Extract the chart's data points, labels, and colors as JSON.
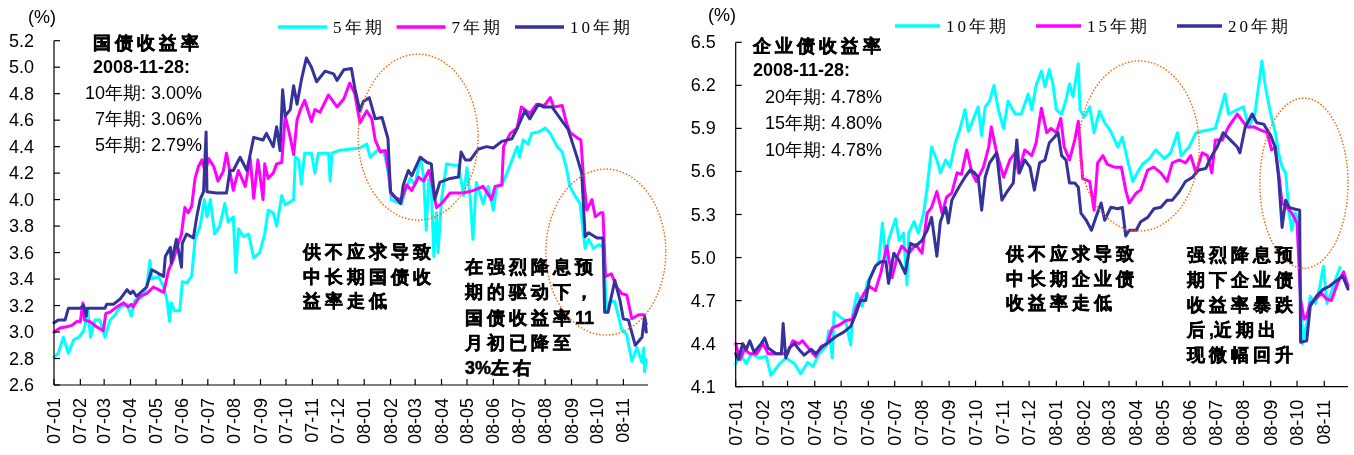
{
  "chart_data": [
    {
      "type": "line",
      "ylabel": "(%)",
      "legend": "top",
      "xlim": [
        "2007-01-01",
        "2008-11-30"
      ],
      "xticks": [
        {
          "value": "2007-01-01",
          "label": "07-01"
        },
        {
          "value": "2007-02-01",
          "label": "07-02"
        },
        {
          "value": "2007-03-01",
          "label": "07-03"
        },
        {
          "value": "2007-04-01",
          "label": "07-04"
        },
        {
          "value": "2007-05-01",
          "label": "07-05"
        },
        {
          "value": "2007-06-01",
          "label": "07-06"
        },
        {
          "value": "2007-07-01",
          "label": "07-07"
        },
        {
          "value": "2007-08-01",
          "label": "07-08"
        },
        {
          "value": "2007-09-01",
          "label": "07-09"
        },
        {
          "value": "2007-10-01",
          "label": "07-10"
        },
        {
          "value": "2007-11-01",
          "label": "07-11"
        },
        {
          "value": "2007-12-01",
          "label": "07-12"
        },
        {
          "value": "2008-01-01",
          "label": "08-01"
        },
        {
          "value": "2008-02-01",
          "label": "08-02"
        },
        {
          "value": "2008-03-01",
          "label": "08-03"
        },
        {
          "value": "2008-04-01",
          "label": "08-04"
        },
        {
          "value": "2008-05-01",
          "label": "08-05"
        },
        {
          "value": "2008-06-01",
          "label": "08-06"
        },
        {
          "value": "2008-07-01",
          "label": "08-07"
        },
        {
          "value": "2008-08-01",
          "label": "08-08"
        },
        {
          "value": "2008-09-01",
          "label": "08-09"
        },
        {
          "value": "2008-10-01",
          "label": "08-10"
        },
        {
          "value": "2008-11-01",
          "label": "08-11"
        }
      ],
      "ylim": [
        2.6,
        5.2
      ],
      "yticks": [
        2.6,
        2.8,
        {
          "value": 3,
          "label": "3.0"
        },
        3.2,
        3.4,
        3.6,
        3.8,
        {
          "value": 4,
          "label": "4.0"
        },
        4.2,
        4.4,
        4.6,
        4.8,
        {
          "value": 5,
          "label": "5.0"
        },
        5.2
      ],
      "annotations": [
        "国债收益率",
        "2008-11-28:",
        "10年期: 3.00%",
        "7年期: 3.06%",
        "5年期: 2.79%",
        "供不应求导致中长期国债收益率走低",
        "在强烈降息预期的驱动下，国债收益率11月初已降至3%左右"
      ],
      "series": [
        {
          "name": "5年期",
          "color": "#00FFFF",
          "x": [
            "2007-01-01",
            "2007-01-06",
            "2007-01-12",
            "2007-01-18",
            "2007-01-24",
            "2007-01-30",
            "2007-02-05",
            "2007-02-10",
            "2007-02-13",
            "2007-02-18",
            "2007-02-24",
            "2007-03-02",
            "2007-03-08",
            "2007-03-14",
            "2007-03-20",
            "2007-03-28",
            "2007-04-02",
            "2007-04-06",
            "2007-04-14",
            "2007-04-20",
            "2007-04-24",
            "2007-04-26",
            "2007-05-04",
            "2007-05-10",
            "2007-05-14",
            "2007-05-17",
            "2007-05-19",
            "2007-05-23",
            "2007-05-29",
            "2007-06-01",
            "2007-06-06",
            "2007-06-12",
            "2007-06-16",
            "2007-06-22",
            "2007-06-27",
            "2007-06-30",
            "2007-07-04",
            "2007-07-09",
            "2007-07-15",
            "2007-07-21",
            "2007-07-25",
            "2007-07-31",
            "2007-08-03",
            "2007-08-06",
            "2007-08-12",
            "2007-08-18",
            "2007-08-24",
            "2007-08-31",
            "2007-09-06",
            "2007-09-10",
            "2007-09-16",
            "2007-09-20",
            "2007-09-26",
            "2007-09-30",
            "2007-10-10",
            "2007-10-12",
            "2007-10-16",
            "2007-10-19",
            "2007-10-23",
            "2007-10-31",
            "2007-11-04",
            "2007-11-08",
            "2007-11-20",
            "2007-11-22",
            "2007-11-24",
            "2007-12-02",
            "2007-12-27",
            "2008-01-04",
            "2008-01-08",
            "2008-01-16",
            "2008-01-24",
            "2008-01-29",
            "2008-02-02",
            "2008-02-08",
            "2008-02-14",
            "2008-02-18",
            "2008-02-24",
            "2008-03-01",
            "2008-03-07",
            "2008-03-11",
            "2008-03-14",
            "2008-03-17",
            "2008-03-20",
            "2008-03-23",
            "2008-03-26",
            "2008-03-28",
            "2008-04-01",
            "2008-04-07",
            "2008-04-15",
            "2008-04-21",
            "2008-04-27",
            "2008-05-01",
            "2008-05-05",
            "2008-05-08",
            "2008-05-12",
            "2008-05-20",
            "2008-05-26",
            "2008-06-01",
            "2008-06-05",
            "2008-06-11",
            "2008-06-17",
            "2008-06-23",
            "2008-06-29",
            "2008-07-02",
            "2008-07-06",
            "2008-07-12",
            "2008-07-16",
            "2008-07-24",
            "2008-08-01",
            "2008-08-07",
            "2008-08-15",
            "2008-08-21",
            "2008-08-26",
            "2008-08-30",
            "2008-09-05",
            "2008-09-11",
            "2008-09-17",
            "2008-09-21",
            "2008-09-27",
            "2008-10-03",
            "2008-10-09",
            "2008-10-12",
            "2008-10-16",
            "2008-10-22",
            "2008-10-30",
            "2008-11-05",
            "2008-11-11",
            "2008-11-17",
            "2008-11-23",
            "2008-11-25",
            "2008-11-26",
            "2008-11-28"
          ],
          "values": [
            2.81,
            2.84,
            2.96,
            2.84,
            2.94,
            2.96,
            3.01,
            3.16,
            2.96,
            3.09,
            3.09,
            2.96,
            3.09,
            3.13,
            3.19,
            3.21,
            3.12,
            3.24,
            3.26,
            3.34,
            3.54,
            3.4,
            3.42,
            3.34,
            3.24,
            3.08,
            3.22,
            3.16,
            3.16,
            3.38,
            3.37,
            3.42,
            3.7,
            3.8,
            4.0,
            3.87,
            4.0,
            3.74,
            3.8,
            3.97,
            3.83,
            3.87,
            3.45,
            3.78,
            3.72,
            3.74,
            3.56,
            3.6,
            3.74,
            3.92,
            3.9,
            3.8,
            4.03,
            3.96,
            4.0,
            4.32,
            4.3,
            4.12,
            4.35,
            4.35,
            4.2,
            4.35,
            4.35,
            4.14,
            4.35,
            4.37,
            4.39,
            4.42,
            4.32,
            4.37,
            4.37,
            4.22,
            4.0,
            3.98,
            3.97,
            4.06,
            4.16,
            4.11,
            4.32,
            4.17,
            3.77,
            4.15,
            4.1,
            3.57,
            3.9,
            3.6,
            4.0,
            4.27,
            4.26,
            4.26,
            4.03,
            4.24,
            4.0,
            3.7,
            4.13,
            3.97,
            4.1,
            3.92,
            4.1,
            4.11,
            4.2,
            4.3,
            4.4,
            4.32,
            4.45,
            4.42,
            4.5,
            4.51,
            4.54,
            4.5,
            4.4,
            4.36,
            4.24,
            4.1,
            4.03,
            3.97,
            3.63,
            3.7,
            3.63,
            3.66,
            3.64,
            3.15,
            3.23,
            3.23,
            3.02,
            2.98,
            2.78,
            2.88,
            2.77,
            2.88,
            2.7,
            2.79
          ]
        },
        {
          "name": "7年期",
          "color": "#FF00FF",
          "x": [
            "2007-01-01",
            "2007-01-08",
            "2007-01-16",
            "2007-01-22",
            "2007-01-28",
            "2007-02-01",
            "2007-02-04",
            "2007-02-06",
            "2007-02-12",
            "2007-02-20",
            "2007-02-28",
            "2007-03-03",
            "2007-03-08",
            "2007-03-16",
            "2007-03-24",
            "2007-03-29",
            "2007-04-02",
            "2007-04-04",
            "2007-04-12",
            "2007-04-20",
            "2007-04-28",
            "2007-05-04",
            "2007-05-10",
            "2007-05-16",
            "2007-05-21",
            "2007-05-31",
            "2007-06-04",
            "2007-06-08",
            "2007-06-12",
            "2007-06-16",
            "2007-06-20",
            "2007-06-24",
            "2007-06-28",
            "2007-07-02",
            "2007-07-08",
            "2007-07-13",
            "2007-07-19",
            "2007-07-23",
            "2007-07-31",
            "2007-08-06",
            "2007-08-14",
            "2007-08-20",
            "2007-08-24",
            "2007-08-29",
            "2007-09-04",
            "2007-09-06",
            "2007-09-10",
            "2007-09-16",
            "2007-09-20",
            "2007-09-26",
            "2007-09-30",
            "2007-10-06",
            "2007-10-10",
            "2007-10-14",
            "2007-10-18",
            "2007-10-23",
            "2007-10-31",
            "2007-11-04",
            "2007-11-10",
            "2007-11-20",
            "2007-11-30",
            "2007-12-08",
            "2007-12-15",
            "2007-12-21",
            "2007-12-27",
            "2008-01-04",
            "2008-01-10",
            "2008-01-14",
            "2008-01-20",
            "2008-01-26",
            "2008-01-31",
            "2008-02-01",
            "2008-02-08",
            "2008-02-14",
            "2008-02-20",
            "2008-02-26",
            "2008-03-05",
            "2008-03-11",
            "2008-03-17",
            "2008-03-20",
            "2008-03-26",
            "2008-04-01",
            "2008-04-11",
            "2008-04-19",
            "2008-04-27",
            "2008-05-09",
            "2008-05-20",
            "2008-05-30",
            "2008-06-03",
            "2008-06-11",
            "2008-06-13",
            "2008-06-21",
            "2008-06-29",
            "2008-07-04",
            "2008-07-14",
            "2008-07-22",
            "2008-07-31",
            "2008-08-07",
            "2008-08-11",
            "2008-08-21",
            "2008-08-26",
            "2008-08-30",
            "2008-09-07",
            "2008-09-12",
            "2008-09-15",
            "2008-09-19",
            "2008-09-25",
            "2008-09-29",
            "2008-10-05",
            "2008-10-08",
            "2008-10-11",
            "2008-10-18",
            "2008-10-24",
            "2008-10-30",
            "2008-11-05",
            "2008-11-11",
            "2008-11-19",
            "2008-11-25",
            "2008-11-28"
          ],
          "values": [
            3.0,
            3.03,
            3.04,
            3.05,
            3.08,
            3.08,
            3.22,
            3.09,
            3.08,
            3.04,
            3.01,
            3.14,
            3.15,
            3.19,
            3.22,
            3.19,
            3.21,
            3.19,
            3.27,
            3.29,
            3.34,
            3.32,
            3.3,
            3.47,
            3.54,
            3.74,
            3.94,
            3.9,
            3.95,
            4.16,
            4.25,
            4.3,
            4.21,
            4.31,
            4.25,
            4.14,
            4.21,
            4.35,
            4.07,
            4.22,
            4.1,
            4.31,
            4.01,
            4.3,
            4.0,
            4.27,
            4.16,
            4.2,
            4.27,
            4.28,
            4.63,
            4.47,
            4.34,
            4.6,
            4.68,
            4.75,
            4.59,
            4.68,
            4.66,
            4.79,
            4.7,
            4.76,
            4.88,
            4.8,
            4.58,
            4.67,
            4.61,
            4.45,
            4.36,
            4.37,
            4.15,
            4.05,
            4.01,
            4.0,
            4.11,
            4.07,
            4.17,
            4.14,
            4.22,
            4.15,
            3.94,
            3.97,
            4.05,
            4.05,
            4.05,
            4.07,
            4.1,
            4.0,
            4.1,
            4.11,
            4.4,
            4.5,
            4.54,
            4.7,
            4.65,
            4.72,
            4.71,
            4.77,
            4.7,
            4.71,
            4.58,
            4.51,
            4.47,
            4.45,
            4.17,
            3.92,
            4.0,
            3.87,
            3.9,
            3.9,
            3.42,
            3.44,
            3.34,
            3.29,
            3.28,
            3.1,
            3.13,
            3.13,
            3.06
          ]
        },
        {
          "name": "10年期",
          "color": "#333399",
          "x": [
            "2007-01-01",
            "2007-01-06",
            "2007-01-14",
            "2007-01-18",
            "2007-02-01",
            "2007-02-05",
            "2007-02-08",
            "2007-02-09",
            "2007-03-02",
            "2007-03-04",
            "2007-03-12",
            "2007-03-20",
            "2007-03-28",
            "2007-04-01",
            "2007-04-04",
            "2007-04-08",
            "2007-04-20",
            "2007-04-26",
            "2007-05-02",
            "2007-05-10",
            "2007-05-12",
            "2007-05-18",
            "2007-05-19",
            "2007-05-25",
            "2007-05-31",
            "2007-06-01",
            "2007-06-06",
            "2007-06-14",
            "2007-06-18",
            "2007-06-22",
            "2007-06-26",
            "2007-06-29",
            "2007-06-30",
            "2007-07-11",
            "2007-07-23",
            "2007-07-27",
            "2007-07-31",
            "2007-08-08",
            "2007-08-16",
            "2007-08-24",
            "2007-09-04",
            "2007-09-08",
            "2007-09-16",
            "2007-09-20",
            "2007-09-24",
            "2007-09-27",
            "2007-09-30",
            "2007-10-06",
            "2007-10-10",
            "2007-10-14",
            "2007-10-19",
            "2007-10-25",
            "2007-10-31",
            "2007-11-06",
            "2007-11-16",
            "2007-11-26",
            "2007-11-30",
            "2007-12-08",
            "2007-12-17",
            "2007-12-21",
            "2007-12-27",
            "2007-12-31",
            "2008-01-07",
            "2008-01-14",
            "2008-01-22",
            "2008-01-29",
            "2008-02-01",
            "2008-02-06",
            "2008-02-13",
            "2008-02-16",
            "2008-02-22",
            "2008-02-26",
            "2008-03-07",
            "2008-03-15",
            "2008-03-20",
            "2008-03-24",
            "2008-03-30",
            "2008-04-11",
            "2008-04-21",
            "2008-04-24",
            "2008-04-29",
            "2008-05-05",
            "2008-05-14",
            "2008-05-24",
            "2008-06-01",
            "2008-06-11",
            "2008-06-23",
            "2008-06-30",
            "2008-07-08",
            "2008-07-14",
            "2008-07-24",
            "2008-07-30",
            "2008-08-09",
            "2008-08-19",
            "2008-08-28",
            "2008-09-07",
            "2008-09-13",
            "2008-09-17",
            "2008-09-21",
            "2008-10-01",
            "2008-10-08",
            "2008-10-10",
            "2008-10-14",
            "2008-10-22",
            "2008-10-28",
            "2008-11-01",
            "2008-11-07",
            "2008-11-15",
            "2008-11-23",
            "2008-11-26",
            "2008-11-28"
          ],
          "values": [
            3.07,
            3.09,
            3.09,
            3.18,
            3.18,
            3.2,
            3.12,
            3.18,
            3.18,
            3.21,
            3.21,
            3.25,
            3.32,
            3.29,
            3.31,
            3.27,
            3.34,
            3.47,
            3.45,
            3.42,
            3.57,
            3.64,
            3.52,
            3.7,
            3.49,
            3.67,
            3.74,
            3.71,
            3.87,
            4.0,
            4.06,
            4.51,
            4.06,
            4.05,
            4.05,
            4.22,
            4.22,
            4.32,
            4.22,
            4.47,
            4.45,
            4.5,
            4.4,
            4.55,
            4.37,
            4.83,
            4.63,
            4.68,
            4.86,
            4.72,
            4.9,
            5.07,
            5.0,
            4.89,
            4.97,
            4.95,
            4.9,
            4.98,
            4.99,
            4.84,
            4.67,
            4.74,
            4.77,
            4.61,
            4.62,
            4.46,
            4.06,
            4.02,
            3.97,
            4.11,
            4.22,
            4.18,
            4.32,
            4.28,
            4.27,
            4.0,
            4.13,
            4.16,
            4.17,
            4.36,
            4.3,
            4.3,
            4.38,
            4.4,
            4.39,
            4.44,
            4.46,
            4.55,
            4.67,
            4.61,
            4.72,
            4.7,
            4.7,
            4.61,
            4.53,
            4.33,
            4.2,
            3.72,
            3.75,
            3.71,
            3.71,
            3.15,
            3.15,
            3.39,
            3.24,
            3.1,
            3.09,
            2.9,
            2.96,
            3.12,
            3.0
          ]
        }
      ]
    },
    {
      "type": "line",
      "ylabel": "(%)",
      "legend": "top",
      "xlim": [
        "2007-01-01",
        "2008-11-28"
      ],
      "xticks": [
        {
          "value": "2007-01-01",
          "label": "07-01"
        },
        {
          "value": "2007-02-01",
          "label": "07-02"
        },
        {
          "value": "2007-03-01",
          "label": "07-03"
        },
        {
          "value": "2007-04-01",
          "label": "07-04"
        },
        {
          "value": "2007-05-01",
          "label": "07-05"
        },
        {
          "value": "2007-06-01",
          "label": "07-06"
        },
        {
          "value": "2007-07-01",
          "label": "07-07"
        },
        {
          "value": "2007-08-01",
          "label": "07-08"
        },
        {
          "value": "2007-09-01",
          "label": "07-09"
        },
        {
          "value": "2007-10-01",
          "label": "07-10"
        },
        {
          "value": "2007-11-01",
          "label": "07-11"
        },
        {
          "value": "2007-12-01",
          "label": "07-12"
        },
        {
          "value": "2008-01-01",
          "label": "08-01"
        },
        {
          "value": "2008-02-01",
          "label": "08-02"
        },
        {
          "value": "2008-03-01",
          "label": "08-03"
        },
        {
          "value": "2008-04-01",
          "label": "08-04"
        },
        {
          "value": "2008-05-01",
          "label": "08-05"
        },
        {
          "value": "2008-06-01",
          "label": "08-06"
        },
        {
          "value": "2008-07-01",
          "label": "08-07"
        },
        {
          "value": "2008-08-01",
          "label": "08-08"
        },
        {
          "value": "2008-09-01",
          "label": "08-09"
        },
        {
          "value": "2008-10-01",
          "label": "08-10"
        },
        {
          "value": "2008-11-01",
          "label": "08-11"
        }
      ],
      "ylim": [
        4.1,
        6.5
      ],
      "yticks": [
        4.1,
        4.4,
        4.7,
        {
          "value": 5,
          "label": "5.0"
        },
        5.3,
        5.6,
        5.9,
        6.2,
        6.5
      ],
      "annotations": [
        "企业债收益率",
        "2008-11-28:",
        "20年期: 4.78%",
        "15年期: 4.80%",
        "10年期: 4.78%",
        "供不应求导致中长期企业债收益率走低",
        "强烈降息预期下企业债收益率暴跌后,近期出现微幅回升"
      ],
      "series": [
        {
          "name": "10年期",
          "color": "#00FFFF",
          "x": [
            "2007-01-01",
            "2007-01-06",
            "2007-01-13",
            "2007-01-19",
            "2007-01-28",
            "2007-02-05",
            "2007-02-10",
            "2007-02-20",
            "2007-02-27",
            "2007-03-09",
            "2007-03-16",
            "2007-03-24",
            "2007-03-30",
            "2007-04-06",
            "2007-04-14",
            "2007-04-17",
            "2007-04-21",
            "2007-04-23",
            "2007-04-29",
            "2007-05-06",
            "2007-05-12",
            "2007-05-14",
            "2007-05-19",
            "2007-05-25",
            "2007-05-31",
            "2007-06-07",
            "2007-06-13",
            "2007-06-17",
            "2007-06-21",
            "2007-06-24",
            "2007-07-02",
            "2007-07-06",
            "2007-07-11",
            "2007-07-15",
            "2007-07-17",
            "2007-07-23",
            "2007-07-28",
            "2007-08-03",
            "2007-08-07",
            "2007-08-12",
            "2007-08-18",
            "2007-08-22",
            "2007-08-28",
            "2007-09-02",
            "2007-09-08",
            "2007-09-13",
            "2007-09-19",
            "2007-09-23",
            "2007-09-27",
            "2007-10-04",
            "2007-10-08",
            "2007-10-12",
            "2007-10-17",
            "2007-10-22",
            "2007-10-27",
            "2007-11-02",
            "2007-11-07",
            "2007-11-15",
            "2007-11-22",
            "2007-11-30",
            "2007-12-04",
            "2007-12-09",
            "2007-12-15",
            "2007-12-19",
            "2007-12-24",
            "2007-12-28",
            "2008-01-01",
            "2008-01-07",
            "2008-01-12",
            "2008-01-16",
            "2008-01-20",
            "2008-01-26",
            "2008-01-28",
            "2008-02-02",
            "2008-02-08",
            "2008-02-13",
            "2008-02-19",
            "2008-02-25",
            "2008-03-03",
            "2008-03-11",
            "2008-03-16",
            "2008-03-22",
            "2008-03-28",
            "2008-04-02",
            "2008-04-08",
            "2008-04-16",
            "2008-04-23",
            "2008-05-03",
            "2008-05-10",
            "2008-05-18",
            "2008-05-22",
            "2008-05-31",
            "2008-06-08",
            "2008-06-15",
            "2008-06-23",
            "2008-06-30",
            "2008-07-06",
            "2008-07-11",
            "2008-07-15",
            "2008-07-25",
            "2008-08-01",
            "2008-08-07",
            "2008-08-14",
            "2008-08-22",
            "2008-08-26",
            "2008-09-01",
            "2008-09-06",
            "2008-09-10",
            "2008-09-14",
            "2008-09-18",
            "2008-09-22",
            "2008-09-25",
            "2008-09-29",
            "2008-10-03",
            "2008-10-05",
            "2008-10-07",
            "2008-10-12",
            "2008-10-16",
            "2008-10-22",
            "2008-10-27",
            "2008-10-31",
            "2008-11-04",
            "2008-11-09",
            "2008-11-15",
            "2008-11-19"
          ],
          "values": [
            4.26,
            4.33,
            4.26,
            4.33,
            4.3,
            4.31,
            4.18,
            4.26,
            4.3,
            4.26,
            4.19,
            4.27,
            4.24,
            4.33,
            4.38,
            4.49,
            4.3,
            4.62,
            4.59,
            4.56,
            4.39,
            4.6,
            4.75,
            4.66,
            4.83,
            4.91,
            4.98,
            5.24,
            4.96,
            5.12,
            5.27,
            5.12,
            5.17,
            4.81,
            5.17,
            5.25,
            5.17,
            5.31,
            5.49,
            5.77,
            5.68,
            5.59,
            5.68,
            5.63,
            5.8,
            5.89,
            6.03,
            5.88,
            5.94,
            6.05,
            5.85,
            6.05,
            6.09,
            6.2,
            6.03,
            5.9,
            6.09,
            6.0,
            6.0,
            6.14,
            6.03,
            6.2,
            6.3,
            6.19,
            6.31,
            6.21,
            6.03,
            6.0,
            6.1,
            6.21,
            6.12,
            6.35,
            6.03,
            5.98,
            6.05,
            5.87,
            6.02,
            5.94,
            5.88,
            5.77,
            5.84,
            5.68,
            5.53,
            5.59,
            5.65,
            5.69,
            5.75,
            5.69,
            5.73,
            5.87,
            5.71,
            5.77,
            5.87,
            5.88,
            5.89,
            5.9,
            6.03,
            6.14,
            6.0,
            6.03,
            6.05,
            5.91,
            6.0,
            6.37,
            6.19,
            6.0,
            5.88,
            5.73,
            5.63,
            5.59,
            5.31,
            5.19,
            5.31,
            5.26,
            4.73,
            4.4,
            4.54,
            4.73,
            4.68,
            4.8,
            4.94,
            4.68,
            4.76,
            4.87,
            4.93
          ]
        },
        {
          "name": "15年期",
          "color": "#FF00FF",
          "x": [
            "2007-01-01",
            "2007-01-06",
            "2007-01-11",
            "2007-01-17",
            "2007-01-25",
            "2007-02-01",
            "2007-02-07",
            "2007-02-20",
            "2007-03-01",
            "2007-03-07",
            "2007-03-14",
            "2007-03-18",
            "2007-03-26",
            "2007-04-02",
            "2007-04-08",
            "2007-04-15",
            "2007-04-21",
            "2007-04-29",
            "2007-05-06",
            "2007-05-14",
            "2007-05-19",
            "2007-05-27",
            "2007-06-02",
            "2007-06-09",
            "2007-06-15",
            "2007-06-22",
            "2007-06-28",
            "2007-07-04",
            "2007-07-09",
            "2007-07-17",
            "2007-07-25",
            "2007-08-01",
            "2007-08-07",
            "2007-08-12",
            "2007-08-18",
            "2007-08-24",
            "2007-08-29",
            "2007-09-04",
            "2007-09-10",
            "2007-09-15",
            "2007-09-21",
            "2007-09-27",
            "2007-10-02",
            "2007-10-10",
            "2007-10-16",
            "2007-10-19",
            "2007-10-25",
            "2007-11-02",
            "2007-11-09",
            "2007-11-15",
            "2007-11-19",
            "2007-11-26",
            "2007-12-04",
            "2007-12-09",
            "2007-12-15",
            "2007-12-21",
            "2007-12-26",
            "2008-01-01",
            "2008-01-06",
            "2008-01-10",
            "2008-01-16",
            "2008-01-22",
            "2008-01-26",
            "2008-01-31",
            "2008-02-08",
            "2008-02-13",
            "2008-02-17",
            "2008-02-23",
            "2008-02-28",
            "2008-03-07",
            "2008-03-15",
            "2008-03-20",
            "2008-03-24",
            "2008-04-01",
            "2008-04-06",
            "2008-04-14",
            "2008-04-21",
            "2008-04-29",
            "2008-05-06",
            "2008-05-12",
            "2008-05-20",
            "2008-05-27",
            "2008-06-02",
            "2008-06-08",
            "2008-06-15",
            "2008-06-21",
            "2008-06-26",
            "2008-06-30",
            "2008-07-08",
            "2008-07-15",
            "2008-07-25",
            "2008-07-31",
            "2008-08-05",
            "2008-08-13",
            "2008-08-20",
            "2008-08-28",
            "2008-09-02",
            "2008-09-06",
            "2008-09-10",
            "2008-09-14",
            "2008-09-19",
            "2008-09-25",
            "2008-10-01",
            "2008-10-05",
            "2008-10-09",
            "2008-10-12",
            "2008-10-16",
            "2008-10-22",
            "2008-10-29",
            "2008-11-04",
            "2008-11-09",
            "2008-11-16",
            "2008-11-23",
            "2008-11-28"
          ],
          "values": [
            4.4,
            4.29,
            4.36,
            4.33,
            4.33,
            4.4,
            4.33,
            4.33,
            4.33,
            4.42,
            4.4,
            4.42,
            4.36,
            4.31,
            4.38,
            4.4,
            4.51,
            4.53,
            4.56,
            4.57,
            4.66,
            4.75,
            4.8,
            4.77,
            4.89,
            5.08,
            4.86,
            5.01,
            5.08,
            5.03,
            5.09,
            5.03,
            5.31,
            5.35,
            5.46,
            5.31,
            5.42,
            5.45,
            5.59,
            5.58,
            5.75,
            5.59,
            5.53,
            5.63,
            5.77,
            5.91,
            5.73,
            5.56,
            5.68,
            5.73,
            5.59,
            5.75,
            5.71,
            5.8,
            6.04,
            5.87,
            5.9,
            5.87,
            5.97,
            5.77,
            5.68,
            5.82,
            5.95,
            5.55,
            5.53,
            5.33,
            5.66,
            5.71,
            5.65,
            5.63,
            5.63,
            5.47,
            5.38,
            5.45,
            5.47,
            5.61,
            5.63,
            5.59,
            5.53,
            5.66,
            5.68,
            5.66,
            5.71,
            5.59,
            5.73,
            5.71,
            5.59,
            5.82,
            5.82,
            5.91,
            6.0,
            5.95,
            5.91,
            5.91,
            5.89,
            5.87,
            5.75,
            5.77,
            5.59,
            5.38,
            5.35,
            5.31,
            5.24,
            4.71,
            4.57,
            4.59,
            4.68,
            4.71,
            4.75,
            4.71,
            4.7,
            4.82,
            4.9,
            4.8
          ]
        },
        {
          "name": "20年期",
          "color": "#333399",
          "x": [
            "2007-01-01",
            "2007-01-04",
            "2007-01-09",
            "2007-01-13",
            "2007-01-17",
            "2007-01-22",
            "2007-01-30",
            "2007-02-03",
            "2007-02-07",
            "2007-02-16",
            "2007-02-22",
            "2007-02-24",
            "2007-02-27",
            "2007-03-03",
            "2007-03-09",
            "2007-03-14",
            "2007-03-20",
            "2007-03-28",
            "2007-04-02",
            "2007-04-10",
            "2007-04-17",
            "2007-04-25",
            "2007-05-04",
            "2007-05-12",
            "2007-05-18",
            "2007-05-23",
            "2007-05-29",
            "2007-06-02",
            "2007-06-09",
            "2007-06-15",
            "2007-06-21",
            "2007-06-24",
            "2007-06-30",
            "2007-07-06",
            "2007-07-13",
            "2007-07-19",
            "2007-07-25",
            "2007-08-01",
            "2007-08-07",
            "2007-08-12",
            "2007-08-18",
            "2007-08-22",
            "2007-08-28",
            "2007-08-31",
            "2007-09-04",
            "2007-09-12",
            "2007-09-19",
            "2007-09-25",
            "2007-09-30",
            "2007-10-04",
            "2007-10-08",
            "2007-10-12",
            "2007-10-17",
            "2007-10-25",
            "2007-10-31",
            "2007-11-05",
            "2007-11-13",
            "2007-11-17",
            "2007-11-20",
            "2007-11-26",
            "2007-12-02",
            "2007-12-07",
            "2007-12-13",
            "2007-12-19",
            "2007-12-24",
            "2007-12-30",
            "2008-01-03",
            "2008-01-07",
            "2008-01-12",
            "2008-01-16",
            "2008-01-22",
            "2008-01-26",
            "2008-01-29",
            "2008-02-04",
            "2008-02-10",
            "2008-02-15",
            "2008-02-21",
            "2008-02-25",
            "2008-03-03",
            "2008-03-11",
            "2008-03-16",
            "2008-03-20",
            "2008-03-24",
            "2008-04-01",
            "2008-04-06",
            "2008-04-14",
            "2008-04-21",
            "2008-04-29",
            "2008-05-06",
            "2008-05-12",
            "2008-05-20",
            "2008-05-27",
            "2008-06-04",
            "2008-06-11",
            "2008-06-19",
            "2008-06-26",
            "2008-07-02",
            "2008-07-09",
            "2008-07-17",
            "2008-07-25",
            "2008-07-28",
            "2008-08-03",
            "2008-08-11",
            "2008-08-16",
            "2008-08-24",
            "2008-09-01",
            "2008-09-06",
            "2008-09-10",
            "2008-09-14",
            "2008-09-18",
            "2008-09-22",
            "2008-09-27",
            "2008-10-04",
            "2008-10-05",
            "2008-10-12",
            "2008-10-16",
            "2008-10-23",
            "2008-10-31",
            "2008-11-07",
            "2008-11-13",
            "2008-11-22",
            "2008-11-28"
          ],
          "values": [
            4.33,
            4.29,
            4.4,
            4.36,
            4.42,
            4.34,
            4.4,
            4.44,
            4.37,
            4.33,
            4.33,
            4.54,
            4.3,
            4.37,
            4.4,
            4.36,
            4.32,
            4.36,
            4.33,
            4.38,
            4.41,
            4.45,
            4.48,
            4.52,
            4.61,
            4.7,
            4.7,
            4.84,
            4.94,
            4.97,
            4.97,
            4.82,
            5.03,
            4.98,
            4.89,
            5.1,
            5.08,
            5.12,
            5.19,
            5.28,
            5.01,
            5.25,
            5.35,
            5.24,
            5.4,
            5.49,
            5.56,
            5.61,
            5.59,
            5.56,
            5.33,
            5.56,
            5.66,
            5.73,
            5.4,
            5.45,
            5.52,
            5.82,
            5.59,
            5.68,
            5.63,
            5.47,
            5.66,
            5.68,
            5.8,
            5.84,
            5.87,
            5.71,
            5.68,
            5.52,
            5.52,
            5.49,
            5.31,
            5.26,
            5.19,
            5.28,
            5.38,
            5.26,
            5.35,
            5.34,
            5.35,
            5.15,
            5.19,
            5.19,
            5.25,
            5.28,
            5.34,
            5.35,
            5.4,
            5.4,
            5.46,
            5.53,
            5.56,
            5.61,
            5.62,
            5.71,
            5.77,
            5.87,
            5.82,
            5.77,
            5.73,
            5.91,
            6.0,
            5.94,
            5.93,
            5.85,
            5.77,
            5.56,
            5.21,
            5.4,
            5.35,
            5.34,
            5.33,
            4.41,
            4.42,
            4.66,
            4.73,
            4.78,
            4.8,
            4.83,
            4.87,
            4.78
          ]
        }
      ]
    }
  ]
}
